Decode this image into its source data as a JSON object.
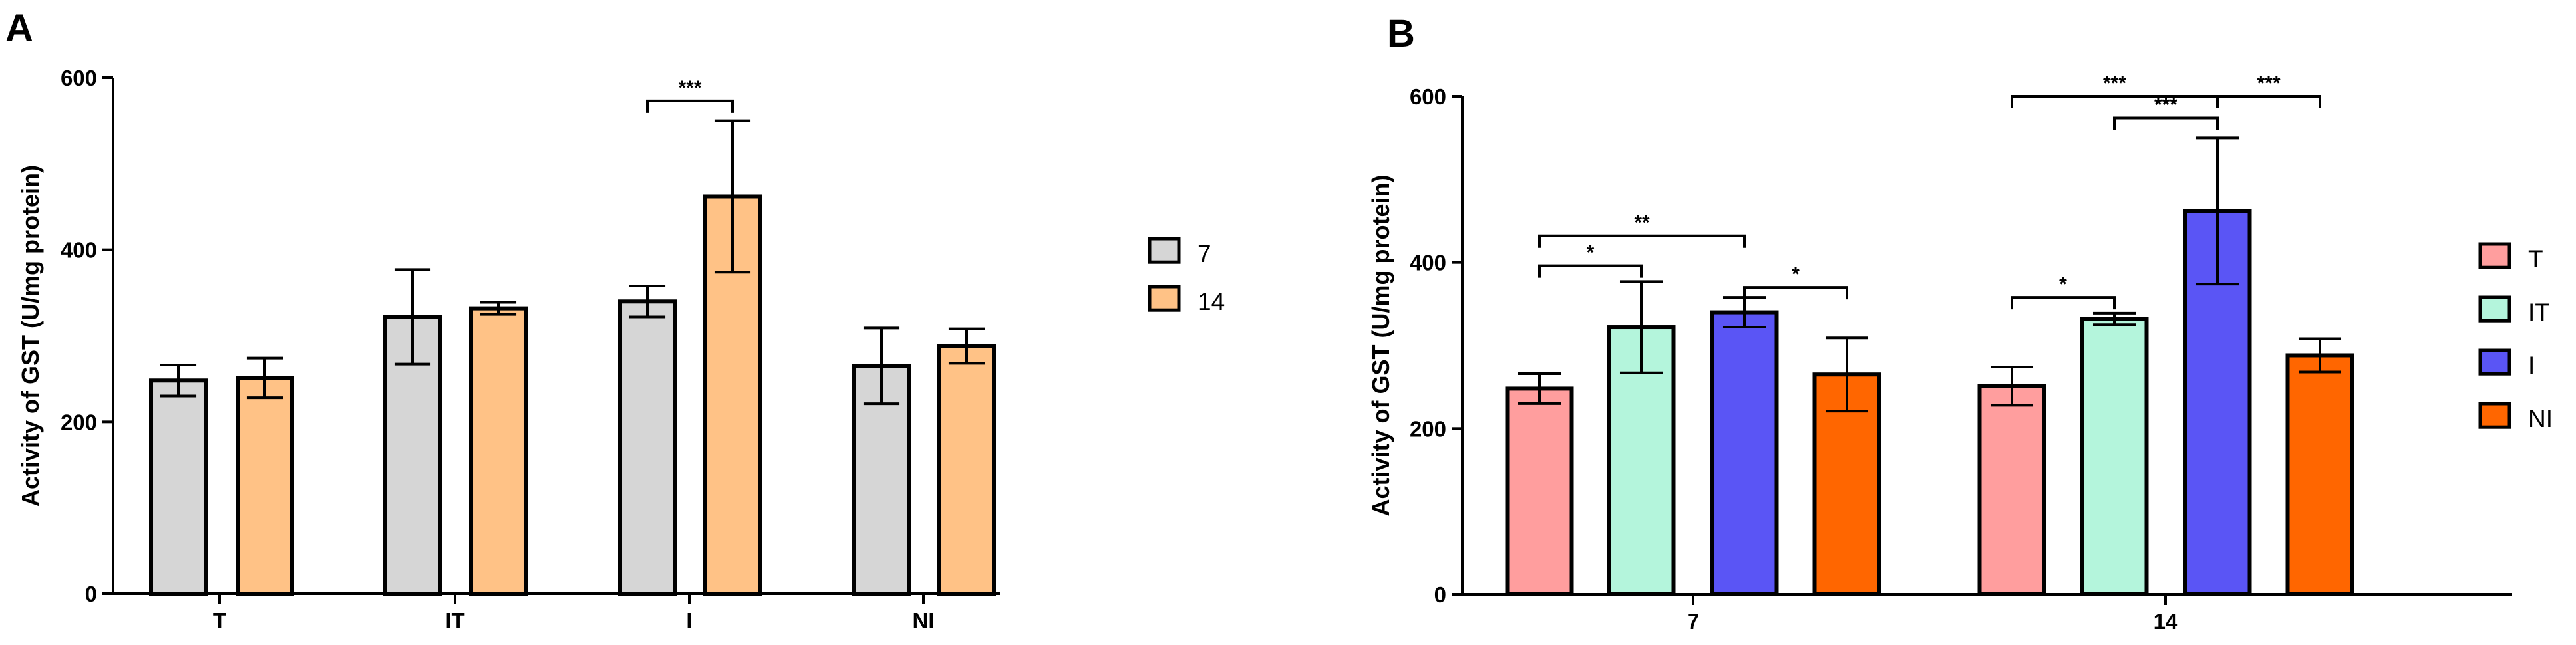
{
  "chart_data": [
    {
      "panel": "A",
      "type": "bar",
      "ylabel": "Activity of GST (U/mg protein)",
      "xlabel": "",
      "ylim": [
        0,
        600
      ],
      "yticks": [
        0,
        200,
        400,
        600
      ],
      "categories": [
        "T",
        "IT",
        "I",
        "NI"
      ],
      "series": [
        {
          "name": "7",
          "color": "#d6d6d6",
          "values": [
            248,
            322,
            340,
            265
          ],
          "errors": [
            18,
            55,
            18,
            44
          ]
        },
        {
          "name": "14",
          "color": "#ffc286",
          "values": [
            251,
            332,
            462,
            288
          ],
          "errors": [
            23,
            7,
            88,
            20
          ]
        }
      ],
      "legend": [
        "7",
        "14"
      ],
      "significance": [
        {
          "label": "***",
          "from": [
            2,
            0
          ],
          "to": [
            2,
            1
          ],
          "y": 573
        }
      ]
    },
    {
      "panel": "B",
      "type": "bar",
      "ylabel": "Activity of GST (U/mg protein)",
      "xlabel": "",
      "ylim": [
        0,
        600
      ],
      "yticks": [
        0,
        200,
        400,
        600
      ],
      "categories": [
        "7",
        "14"
      ],
      "series": [
        {
          "name": "T",
          "color": "#ff9e9e",
          "values": [
            248,
            251
          ],
          "errors": [
            18,
            23
          ]
        },
        {
          "name": "IT",
          "color": "#b4f5dc",
          "values": [
            322,
            332
          ],
          "errors": [
            55,
            7
          ]
        },
        {
          "name": "I",
          "color": "#5a55f5",
          "values": [
            340,
            462
          ],
          "errors": [
            18,
            88
          ]
        },
        {
          "name": "NI",
          "color": "#ff6600",
          "values": [
            265,
            288
          ],
          "errors": [
            44,
            20
          ]
        }
      ],
      "legend": [
        "T",
        "IT",
        "I",
        "NI"
      ],
      "significance": [
        {
          "label": "**",
          "from": [
            0,
            0
          ],
          "to": [
            0,
            2
          ],
          "y": 432
        },
        {
          "label": "*",
          "from": [
            0,
            0
          ],
          "to": [
            0,
            1
          ],
          "y": 396
        },
        {
          "label": "*",
          "from": [
            0,
            2
          ],
          "to": [
            0,
            3
          ],
          "y": 370
        },
        {
          "label": "*",
          "from": [
            1,
            0
          ],
          "to": [
            1,
            1
          ],
          "y": 358
        },
        {
          "label": "***",
          "from": [
            1,
            0
          ],
          "to": [
            1,
            2
          ],
          "y": 600
        },
        {
          "label": "***",
          "from": [
            1,
            1
          ],
          "to": [
            1,
            2
          ],
          "y": 574
        },
        {
          "label": "***",
          "from": [
            1,
            2
          ],
          "to": [
            1,
            3
          ],
          "y": 600
        }
      ]
    }
  ]
}
